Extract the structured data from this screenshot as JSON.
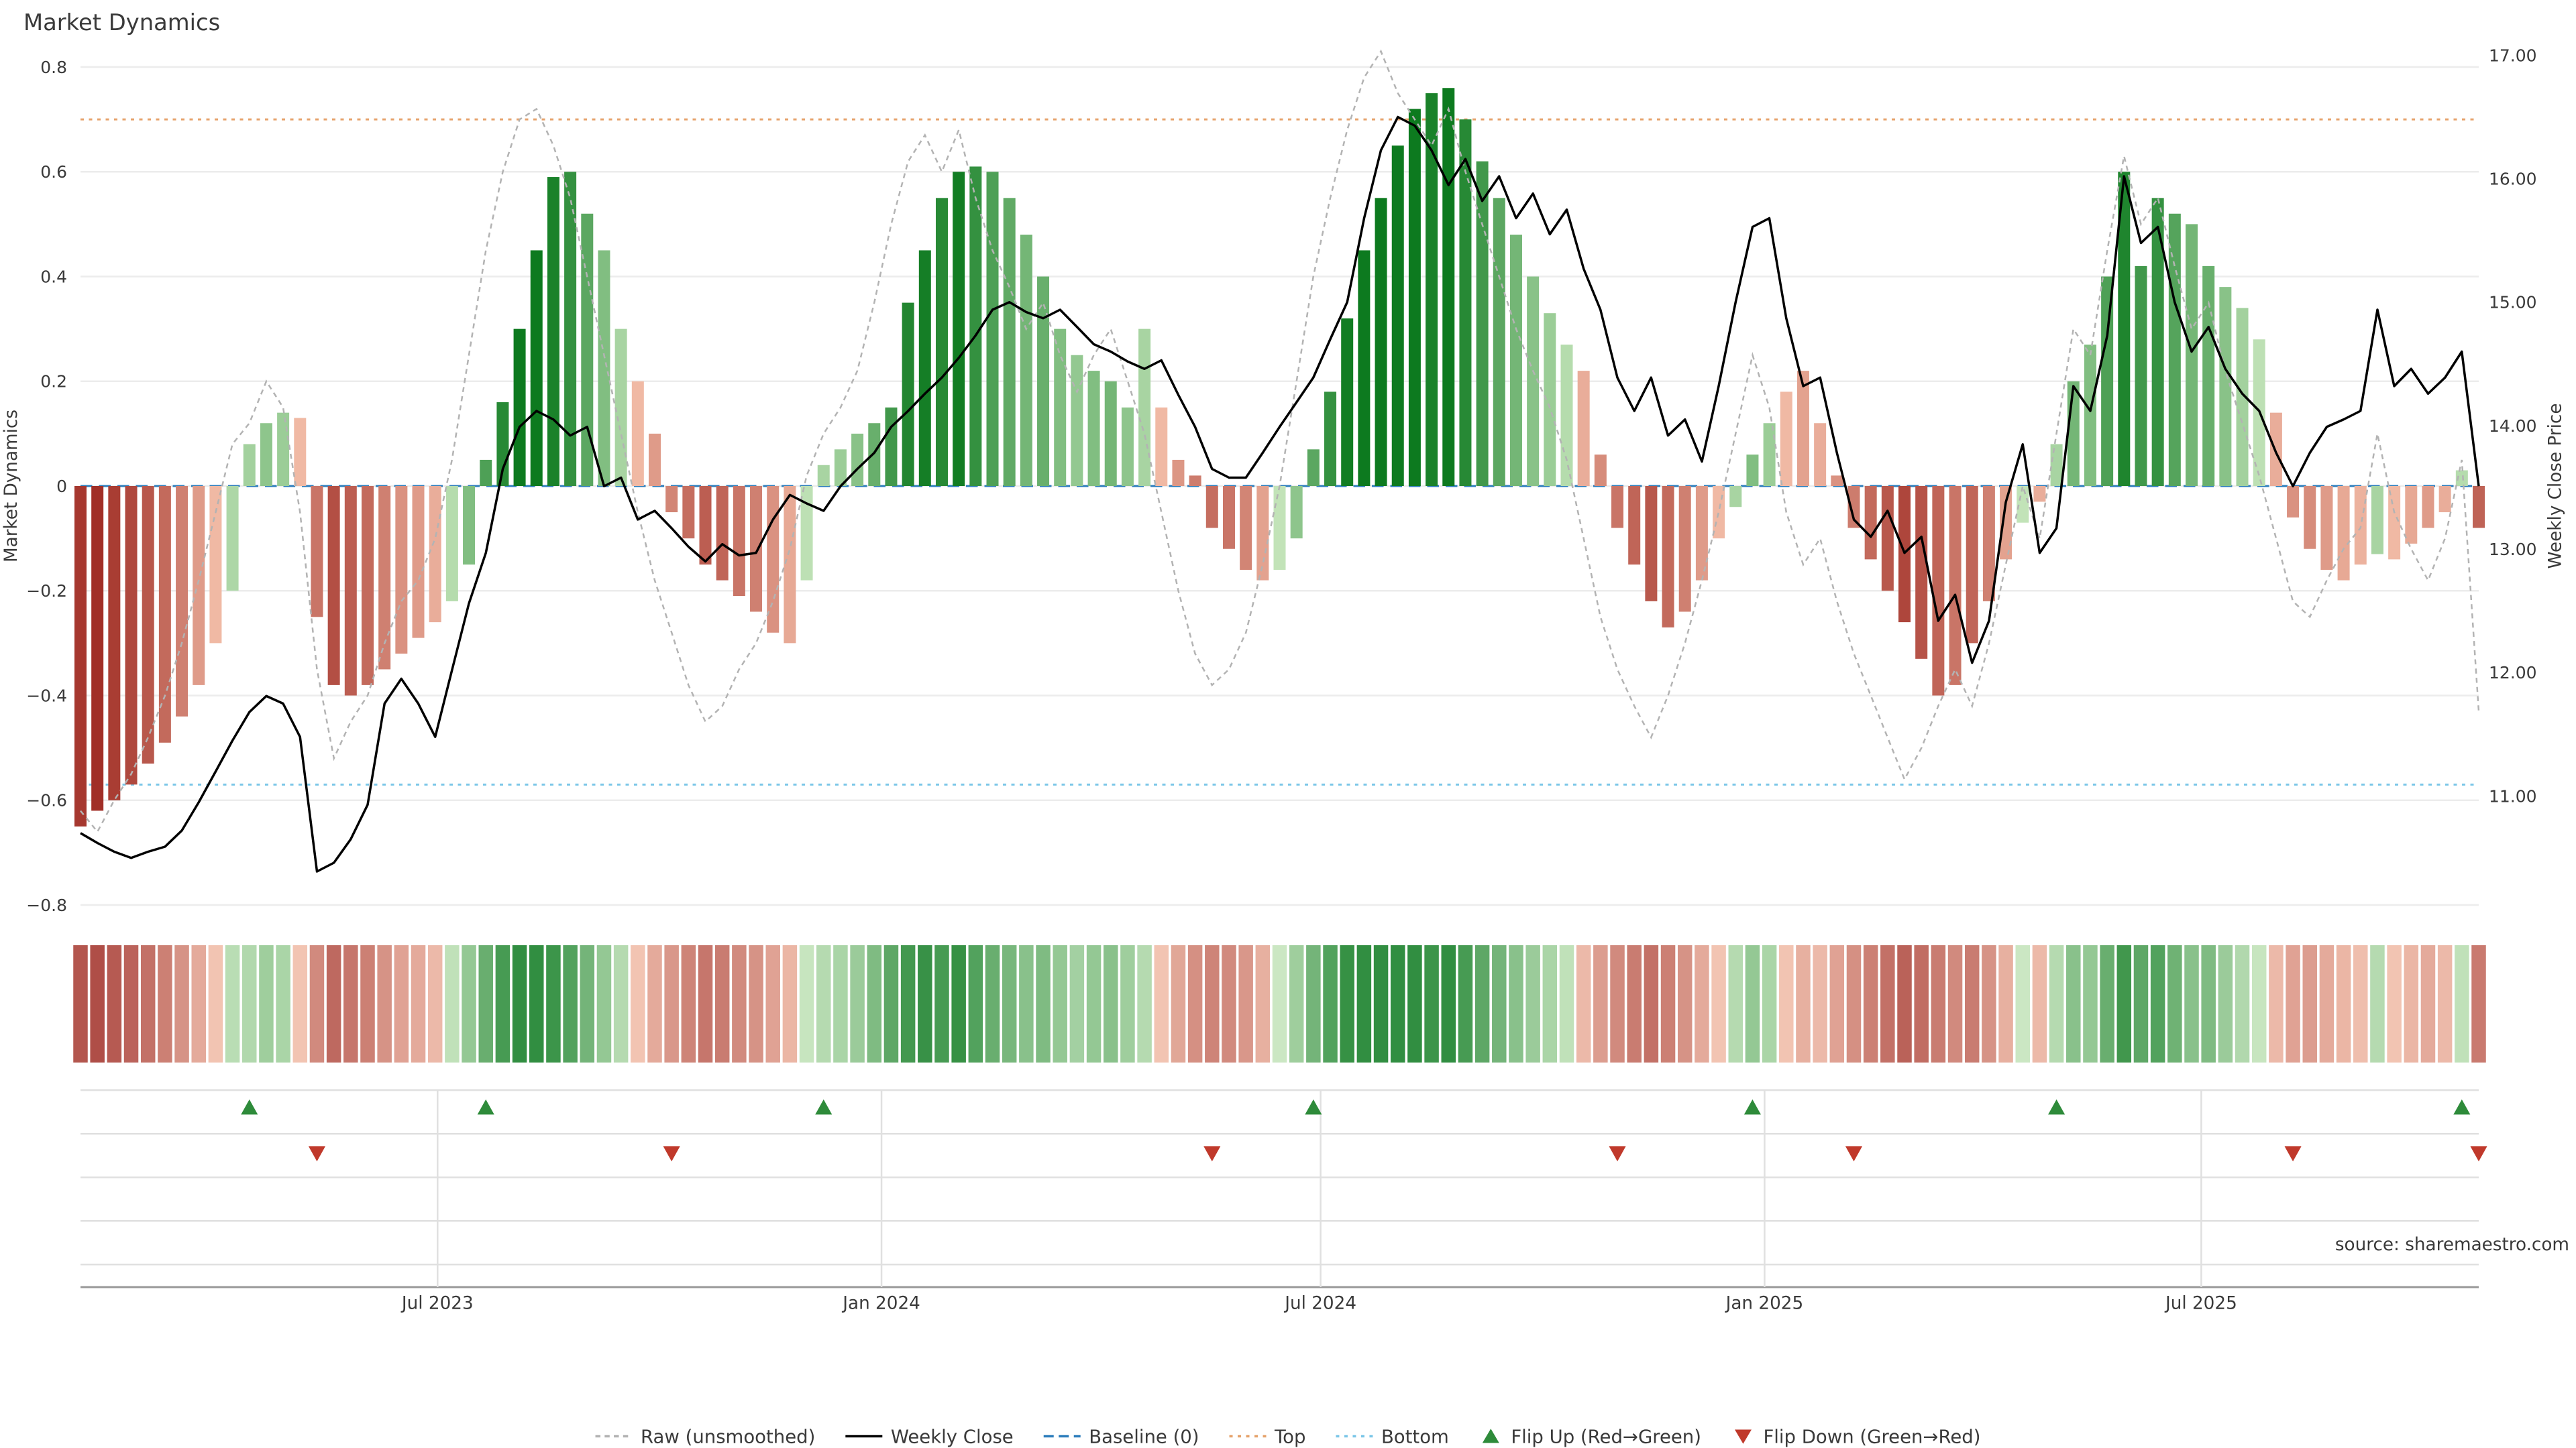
{
  "title": "Market Dynamics",
  "source": "source: sharemaestro.com",
  "colors": {
    "close_line": "#000000",
    "raw_line": "#b3b3b3",
    "baseline": "#2e7ebc",
    "top_band": "#e6a36c",
    "bottom_band": "#7cc7e8",
    "flip_up": "#2e8b3a",
    "flip_down": "#c0392b",
    "bar_pos_light": "#c2e3b8",
    "bar_pos_dark": "#0d7a1f",
    "bar_neg_light": "#f6c4ae",
    "bar_neg_dark": "#9c261f",
    "grid": "#ececec",
    "panel_grid": "#e0e0e0",
    "axis_line": "#999999",
    "text": "#3a3a3a",
    "muted_text": "#9a9a9a"
  },
  "legend_items": [
    {
      "label": "Raw (unsmoothed)",
      "symbol": "dashed-line",
      "color": "#b3b3b3"
    },
    {
      "label": "Weekly Close",
      "symbol": "solid-line",
      "color": "#000000"
    },
    {
      "label": "Baseline (0)",
      "symbol": "long-dash-line",
      "color": "#2e7ebc"
    },
    {
      "label": "Top",
      "symbol": "dotted-line",
      "color": "#e6a36c"
    },
    {
      "label": "Bottom",
      "symbol": "dotted-line",
      "color": "#7cc7e8"
    },
    {
      "label": "Flip Up (Red→Green)",
      "symbol": "triangle-up",
      "color": "#2e8b3a"
    },
    {
      "label": "Flip Down (Green→Red)",
      "symbol": "triangle-down",
      "color": "#c0392b"
    }
  ],
  "chart_data": {
    "type": "bar",
    "subtype": "bar+line combo with heatmap strip and flip-marker panel",
    "start_date": "2023-02-03",
    "frequency": "weekly",
    "points": 143,
    "x_ticks": [
      {
        "label": "Jul 2023",
        "date": "2023-07-01"
      },
      {
        "label": "Jan 2024",
        "date": "2024-01-01"
      },
      {
        "label": "Jul 2024",
        "date": "2024-07-01"
      },
      {
        "label": "Jan 2025",
        "date": "2025-01-01"
      },
      {
        "label": "Jul 2025",
        "date": "2025-07-01"
      }
    ],
    "left_axis": {
      "label": "Market Dynamics",
      "range": [
        -0.8,
        0.8
      ],
      "ticks": [
        0.8,
        0.6,
        0.4,
        0.2,
        0.0,
        -0.2,
        -0.4,
        -0.6,
        -0.8
      ],
      "tick_labels": [
        "0.8",
        "0.6",
        "0.4",
        "0.2",
        "0",
        "−0.2",
        "−0.4",
        "−0.6",
        "−0.8"
      ]
    },
    "right_axis": {
      "label": "Weekly Close Price",
      "range": [
        10.1,
        17.1
      ],
      "ticks": [
        17,
        16,
        15,
        14,
        13,
        12,
        11
      ],
      "tick_labels": [
        "17.00",
        "16.00",
        "15.00",
        "14.00",
        "13.00",
        "12.00",
        "11.00"
      ]
    },
    "baseline": 0,
    "top_band": 0.7,
    "bottom_band": -0.57,
    "series": [
      {
        "name": "Market Dynamics (smoothed bars)",
        "type": "bar",
        "axis": "left",
        "values": [
          -0.65,
          -0.62,
          -0.6,
          -0.57,
          -0.53,
          -0.49,
          -0.44,
          -0.38,
          -0.3,
          -0.2,
          0.08,
          0.12,
          0.14,
          0.13,
          -0.25,
          -0.38,
          -0.4,
          -0.38,
          -0.35,
          -0.32,
          -0.29,
          -0.26,
          -0.22,
          -0.15,
          0.05,
          0.16,
          0.3,
          0.45,
          0.59,
          0.6,
          0.52,
          0.45,
          0.3,
          0.2,
          0.1,
          -0.05,
          -0.1,
          -0.15,
          -0.18,
          -0.21,
          -0.24,
          -0.28,
          -0.3,
          -0.18,
          0.04,
          0.07,
          0.1,
          0.12,
          0.15,
          0.35,
          0.45,
          0.55,
          0.6,
          0.61,
          0.6,
          0.55,
          0.48,
          0.4,
          0.3,
          0.25,
          0.22,
          0.2,
          0.15,
          0.3,
          0.15,
          0.05,
          0.02,
          -0.08,
          -0.12,
          -0.16,
          -0.18,
          -0.16,
          -0.1,
          0.07,
          0.18,
          0.32,
          0.45,
          0.55,
          0.65,
          0.72,
          0.75,
          0.76,
          0.7,
          0.62,
          0.55,
          0.48,
          0.4,
          0.33,
          0.27,
          0.22,
          0.06,
          -0.08,
          -0.15,
          -0.22,
          -0.27,
          -0.24,
          -0.18,
          -0.1,
          -0.04,
          0.06,
          0.12,
          0.18,
          0.22,
          0.12,
          0.02,
          -0.08,
          -0.14,
          -0.2,
          -0.26,
          -0.33,
          -0.4,
          -0.38,
          -0.3,
          -0.22,
          -0.14,
          -0.07,
          -0.03,
          0.08,
          0.2,
          0.27,
          0.4,
          0.6,
          0.42,
          0.55,
          0.52,
          0.5,
          0.42,
          0.38,
          0.34,
          0.28,
          0.14,
          -0.06,
          -0.12,
          -0.16,
          -0.18,
          -0.15,
          -0.13,
          -0.14,
          -0.11,
          -0.08,
          -0.05,
          0.03,
          -0.08
        ]
      },
      {
        "name": "Raw (unsmoothed)",
        "type": "line",
        "axis": "left",
        "values": [
          -0.62,
          -0.66,
          -0.6,
          -0.55,
          -0.48,
          -0.4,
          -0.3,
          -0.18,
          -0.05,
          0.08,
          0.12,
          0.2,
          0.15,
          -0.05,
          -0.35,
          -0.52,
          -0.45,
          -0.4,
          -0.3,
          -0.22,
          -0.18,
          -0.1,
          0.05,
          0.25,
          0.45,
          0.6,
          0.7,
          0.72,
          0.65,
          0.55,
          0.4,
          0.25,
          0.1,
          -0.05,
          -0.18,
          -0.28,
          -0.38,
          -0.45,
          -0.42,
          -0.35,
          -0.3,
          -0.22,
          -0.12,
          0.02,
          0.1,
          0.15,
          0.22,
          0.35,
          0.5,
          0.62,
          0.67,
          0.6,
          0.68,
          0.55,
          0.45,
          0.38,
          0.3,
          0.35,
          0.25,
          0.18,
          0.25,
          0.3,
          0.2,
          0.1,
          -0.05,
          -0.2,
          -0.32,
          -0.38,
          -0.35,
          -0.28,
          -0.15,
          0.0,
          0.2,
          0.4,
          0.55,
          0.68,
          0.78,
          0.83,
          0.75,
          0.7,
          0.65,
          0.72,
          0.6,
          0.5,
          0.4,
          0.3,
          0.22,
          0.15,
          0.05,
          -0.1,
          -0.25,
          -0.35,
          -0.42,
          -0.48,
          -0.4,
          -0.3,
          -0.18,
          -0.05,
          0.1,
          0.25,
          0.15,
          -0.05,
          -0.15,
          -0.1,
          -0.22,
          -0.32,
          -0.4,
          -0.48,
          -0.56,
          -0.5,
          -0.42,
          -0.35,
          -0.42,
          -0.3,
          -0.15,
          0.0,
          -0.1,
          0.1,
          0.3,
          0.25,
          0.45,
          0.63,
          0.5,
          0.55,
          0.42,
          0.3,
          0.35,
          0.22,
          0.12,
          0.02,
          -0.1,
          -0.22,
          -0.25,
          -0.18,
          -0.12,
          -0.08,
          0.1,
          -0.05,
          -0.12,
          -0.18,
          -0.1,
          0.05,
          -0.43
        ]
      },
      {
        "name": "Weekly Close",
        "type": "line",
        "axis": "right",
        "values": [
          10.7,
          10.62,
          10.55,
          10.5,
          10.55,
          10.59,
          10.72,
          10.95,
          11.2,
          11.45,
          11.68,
          11.81,
          11.75,
          11.48,
          10.39,
          10.46,
          10.65,
          10.93,
          11.75,
          11.95,
          11.75,
          11.48,
          12.02,
          12.56,
          12.97,
          13.65,
          13.99,
          14.12,
          14.05,
          13.92,
          13.99,
          13.51,
          13.58,
          13.24,
          13.31,
          13.17,
          13.02,
          12.9,
          13.04,
          12.95,
          12.97,
          13.24,
          13.44,
          13.37,
          13.31,
          13.51,
          13.65,
          13.78,
          13.99,
          14.12,
          14.26,
          14.39,
          14.55,
          14.73,
          14.94,
          15.0,
          14.92,
          14.87,
          14.94,
          14.8,
          14.66,
          14.6,
          14.52,
          14.46,
          14.53,
          14.25,
          13.99,
          13.65,
          13.58,
          13.58,
          13.78,
          13.99,
          14.19,
          14.39,
          14.7,
          15.0,
          15.68,
          16.23,
          16.5,
          16.43,
          16.23,
          15.95,
          16.16,
          15.82,
          16.02,
          15.68,
          15.88,
          15.55,
          15.75,
          15.27,
          14.94,
          14.39,
          14.12,
          14.39,
          13.92,
          14.05,
          13.71,
          14.32,
          15.0,
          15.61,
          15.68,
          14.87,
          14.32,
          14.39,
          13.78,
          13.24,
          13.1,
          13.31,
          12.97,
          13.1,
          12.42,
          12.63,
          12.08,
          12.42,
          13.38,
          13.85,
          12.97,
          13.17,
          14.32,
          14.12,
          14.73,
          16.02,
          15.48,
          15.61,
          15.0,
          14.6,
          14.8,
          14.46,
          14.26,
          14.12,
          13.78,
          13.51,
          13.78,
          13.99,
          14.05,
          14.12,
          14.94,
          14.32,
          14.46,
          14.26,
          14.39,
          14.6,
          13.51
        ]
      }
    ],
    "flip_up": {
      "label": "Flip Up (Red→Green)",
      "dates": [
        "2023-04-14",
        "2023-07-21",
        "2023-12-08",
        "2024-06-28",
        "2024-12-27",
        "2025-05-02",
        "2025-10-17"
      ]
    },
    "flip_down": {
      "label": "Flip Down (Green→Red)",
      "dates": [
        "2023-05-12",
        "2023-10-06",
        "2024-05-17",
        "2024-11-01",
        "2025-02-07",
        "2025-08-08",
        "2025-10-24"
      ]
    }
  }
}
